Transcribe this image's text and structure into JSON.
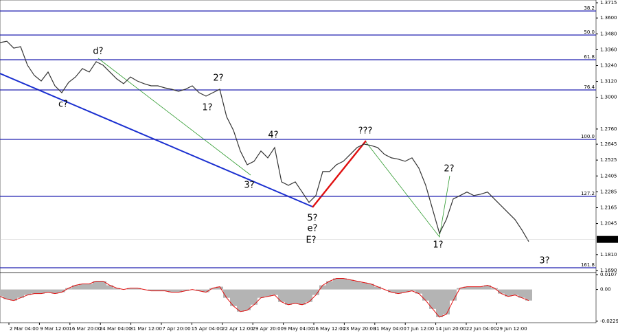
{
  "chart_data": {
    "type": "line",
    "price": {
      "name": "Price",
      "color": "#333333",
      "values": [
        1.3414,
        1.3424,
        1.3372,
        1.3383,
        1.3243,
        1.3165,
        1.3123,
        1.3191,
        1.3087,
        1.3035,
        1.3113,
        1.3154,
        1.3217,
        1.3191,
        1.3269,
        1.3243,
        1.3191,
        1.3139,
        1.3103,
        1.3154,
        1.3123,
        1.3103,
        1.3087,
        1.3087,
        1.3071,
        1.3061,
        1.3045,
        1.3061,
        1.3087,
        1.3035,
        1.3009,
        1.3035,
        1.3061,
        1.2853,
        1.275,
        1.2594,
        1.249,
        1.2516,
        1.2594,
        1.2542,
        1.262,
        1.236,
        1.2334,
        1.236,
        1.2283,
        1.2205,
        1.2257,
        1.2438,
        1.2438,
        1.249,
        1.2516,
        1.2568,
        1.262,
        1.2646,
        1.2636,
        1.262,
        1.2568,
        1.2542,
        1.2532,
        1.2516,
        1.2542,
        1.2464,
        1.2334,
        1.2153,
        1.1971,
        1.2075,
        1.2231,
        1.2257,
        1.2283,
        1.2257,
        1.2267,
        1.2283,
        1.2231,
        1.2179,
        1.2127,
        1.2075,
        1.1997,
        1.1909
      ]
    },
    "ylim": [
      1.1674,
      1.3736
    ],
    "yticks": [
      {
        "value": 1.3715,
        "label": "1.3715"
      },
      {
        "value": 1.36,
        "label": "1.3600"
      },
      {
        "value": 1.348,
        "label": "1.3480"
      },
      {
        "value": 1.336,
        "label": "1.3360"
      },
      {
        "value": 1.324,
        "label": "1.3240"
      },
      {
        "value": 1.312,
        "label": "1.3120"
      },
      {
        "value": 1.3,
        "label": "1.3000"
      },
      {
        "value": 1.276,
        "label": "1.2760"
      },
      {
        "value": 1.2645,
        "label": "1.2645"
      },
      {
        "value": 1.2525,
        "label": "1.2525"
      },
      {
        "value": 1.2405,
        "label": "1.2405"
      },
      {
        "value": 1.2285,
        "label": "1.2285"
      },
      {
        "value": 1.2165,
        "label": "1.2165"
      },
      {
        "value": 1.2045,
        "label": "1.2045"
      },
      {
        "value": 1.181,
        "label": "1.1810"
      },
      {
        "value": 1.169,
        "label": "1.1690"
      }
    ],
    "current_price": {
      "value": 1.1925,
      "label": "1.1925"
    },
    "categories": [
      "2 Mar 04:00",
      "9 Mar 12:00",
      "16 Mar 20:00",
      "24 Mar 04:00",
      "31 Mar 12:00",
      "7 Apr 20:00",
      "15 Apr 04:00",
      "22 Apr 12:00",
      "29 Apr 20:00",
      "9 May 04:00",
      "16 May 12:00",
      "23 May 20:00",
      "31 May 04:00",
      "7 Jun 12:00",
      "14 Jun 20:00",
      "22 Jun 04:00",
      "29 Jun 12:00"
    ],
    "fib_labels": [
      "38.2",
      "50.0",
      "61.8",
      "76.4",
      "100.0",
      "127.2",
      "161.8"
    ],
    "wave_labels": [
      {
        "text": "d?",
        "color": "#1e8c1e"
      },
      {
        "text": "c?",
        "color": "#1e8c1e"
      },
      {
        "text": "2?",
        "color": "#e01010"
      },
      {
        "text": "1?",
        "color": "#e01010"
      },
      {
        "text": "4?",
        "color": "#e01010"
      },
      {
        "text": "3?",
        "color": "#e01010"
      },
      {
        "text": "???",
        "color": "#e01010"
      },
      {
        "text": "5?",
        "color": "#e01010"
      },
      {
        "text": "e?",
        "color": "#1e8c1e"
      },
      {
        "text": "E?",
        "color": "#1a3ad6"
      },
      {
        "text": "2?",
        "color": "#1e8c1e"
      },
      {
        "text": "1?",
        "color": "#1e8c1e"
      },
      {
        "text": "3?",
        "color": "#1e8c1e"
      }
    ],
    "oscillator": {
      "color": "#b4b4b4",
      "line_color": "#e01010",
      "values": [
        -0.005,
        -0.007,
        -0.008,
        -0.006,
        -0.004,
        -0.003,
        -0.003,
        -0.002,
        -0.003,
        -0.002,
        0.001,
        0.003,
        0.004,
        0.004,
        0.006,
        0.006,
        0.003,
        0.001,
        0.0,
        0.001,
        0.001,
        0.0,
        -0.001,
        -0.001,
        -0.001,
        -0.002,
        -0.002,
        -0.001,
        0.0,
        -0.001,
        -0.002,
        0.001,
        0.002,
        -0.006,
        -0.012,
        -0.016,
        -0.015,
        -0.011,
        -0.006,
        -0.005,
        -0.004,
        -0.009,
        -0.011,
        -0.01,
        -0.011,
        -0.009,
        -0.004,
        0.003,
        0.006,
        0.008,
        0.008,
        0.007,
        0.006,
        0.005,
        0.004,
        0.002,
        0.0,
        -0.002,
        -0.003,
        -0.002,
        -0.001,
        -0.003,
        -0.008,
        -0.014,
        -0.02,
        -0.018,
        -0.008,
        0.001,
        0.002,
        0.002,
        0.002,
        0.003,
        0.001,
        -0.003,
        -0.005,
        -0.004,
        -0.006,
        -0.008
      ]
    },
    "osc_ylim": [
      -0.0235,
      0.0112
    ],
    "osc_yticks": [
      0.0107,
      {
        "value": 0,
        "label": "0.00"
      },
      -0.0229
    ]
  }
}
